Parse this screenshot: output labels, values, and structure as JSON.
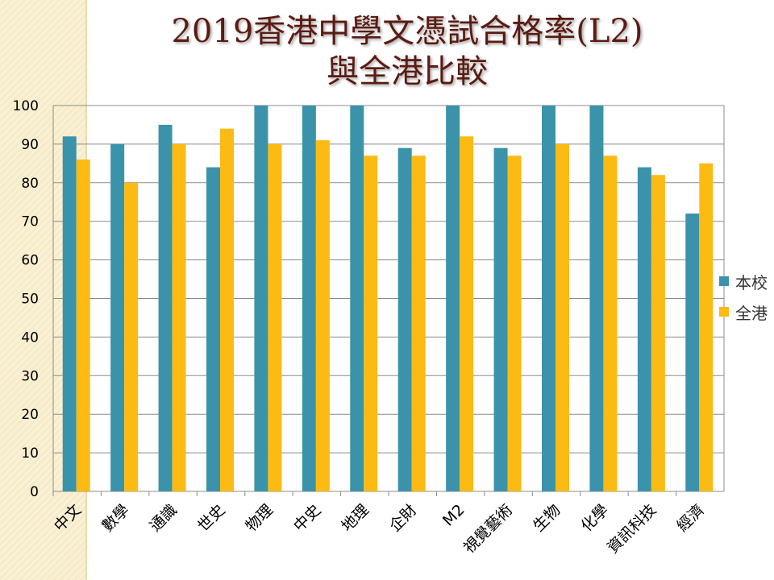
{
  "title": {
    "line1": "2019香港中學文憑試合格率(L2)",
    "line2": "與全港比較"
  },
  "colors": {
    "school": "#3a93aa",
    "hk": "#fbbb13",
    "grid": "#8c8c8c",
    "axis_text": "#000000"
  },
  "chart_data": {
    "type": "bar",
    "categories": [
      "中文",
      "數學",
      "通識",
      "世史",
      "物理",
      "中史",
      "地理",
      "企財",
      "M2",
      "視覺藝術",
      "生物",
      "化學",
      "資訊科技",
      "經濟"
    ],
    "series": [
      {
        "name": "本校",
        "values": [
          92,
          90,
          95,
          84,
          100,
          100,
          100,
          89,
          100,
          89,
          100,
          100,
          84,
          72
        ]
      },
      {
        "name": "全港",
        "values": [
          86,
          80,
          90,
          94,
          90,
          91,
          87,
          87,
          92,
          87,
          90,
          87,
          82,
          85
        ]
      }
    ],
    "ylim": [
      0,
      100
    ],
    "yticks": [
      0,
      10,
      20,
      30,
      40,
      50,
      60,
      70,
      80,
      90,
      100
    ],
    "grid": true,
    "legend": "right"
  }
}
